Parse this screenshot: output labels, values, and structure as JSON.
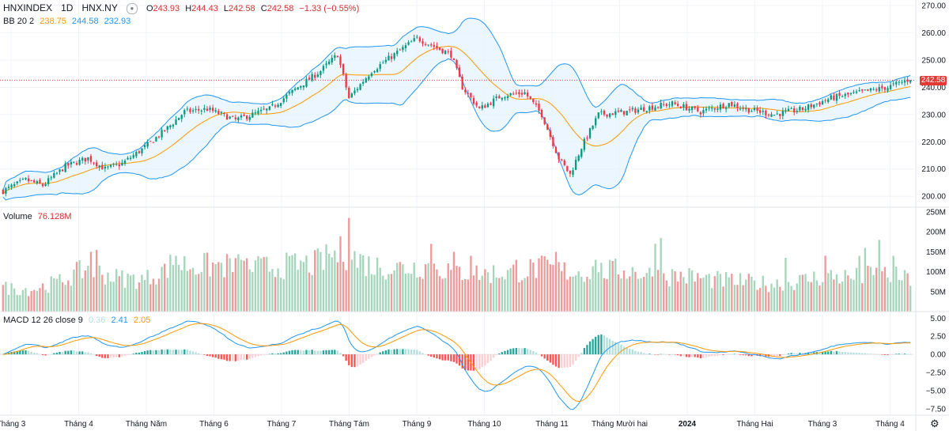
{
  "header": {
    "symbol": "HNXINDEX",
    "interval": "1D",
    "exchange": "HNX.NY",
    "open_label": "O",
    "open": "243.93",
    "high_label": "H",
    "high": "244.43",
    "low_label": "L",
    "low": "242.58",
    "close_label": "C",
    "close": "242.58",
    "change": "−1.33 (−0.55%)"
  },
  "bb_legend": {
    "name": "BB 20 2",
    "basis": "238.75",
    "upper": "244.58",
    "lower": "232.93"
  },
  "volume_legend": {
    "name": "Volume",
    "value": "76.128M"
  },
  "macd_legend": {
    "name": "MACD 12 26 close 9",
    "hist": "0.36",
    "macd": "2.41",
    "signal": "2.05"
  },
  "last_price_tag": "242.58",
  "colors": {
    "up": "#089981",
    "down": "#f23645",
    "vol_up": "#a5d6bb",
    "vol_down": "#ef9a9a",
    "bb_band": "#2196f3",
    "bb_fill": "#e3f2fd",
    "bb_basis": "#ff9800",
    "macd_line": "#2196f3",
    "signal_line": "#ff9800",
    "hist_up_strong": "#26a69a",
    "hist_up_weak": "#b2dfdb",
    "hist_dn_strong": "#ff5252",
    "hist_dn_weak": "#ffcdd2"
  },
  "chart_data": {
    "type": "candlestick",
    "x_axis_labels": [
      "Tháng 3",
      "Tháng 4",
      "Tháng Năm",
      "Tháng 6",
      "Tháng 7",
      "Tháng Tám",
      "Tháng 9",
      "Tháng 10",
      "Tháng 11",
      "Tháng Mười hai",
      "2024",
      "Tháng Hai",
      "Tháng 3",
      "Tháng 4"
    ],
    "price_axis": {
      "ticks": [
        "270.00",
        "260.00",
        "250.00",
        "240.00",
        "230.00",
        "220.00",
        "210.00",
        "200.00"
      ],
      "range": [
        196,
        272
      ]
    },
    "volume_axis": {
      "ticks": [
        "250M",
        "200M",
        "150M",
        "100M",
        "50M"
      ],
      "range": [
        0,
        260
      ]
    },
    "macd_axis": {
      "ticks": [
        "5.00",
        "2.50",
        "0.00",
        "−2.50",
        "−5.00",
        "−7.50"
      ],
      "range": [
        -8.4,
        5.8
      ]
    },
    "price_anchors": [
      [
        0,
        202
      ],
      [
        8,
        206
      ],
      [
        14,
        204
      ],
      [
        22,
        211
      ],
      [
        30,
        214
      ],
      [
        36,
        210
      ],
      [
        42,
        212
      ],
      [
        50,
        218
      ],
      [
        58,
        225
      ],
      [
        64,
        231
      ],
      [
        72,
        232
      ],
      [
        82,
        228
      ],
      [
        94,
        232
      ],
      [
        104,
        240
      ],
      [
        112,
        246
      ],
      [
        118,
        252
      ],
      [
        122,
        236
      ],
      [
        130,
        246
      ],
      [
        138,
        252
      ],
      [
        146,
        258
      ],
      [
        150,
        256
      ],
      [
        158,
        252
      ],
      [
        162,
        240
      ],
      [
        168,
        232
      ],
      [
        176,
        237
      ],
      [
        184,
        238
      ],
      [
        190,
        230
      ],
      [
        196,
        214
      ],
      [
        200,
        208
      ],
      [
        204,
        218
      ],
      [
        210,
        230
      ],
      [
        220,
        231
      ],
      [
        230,
        233
      ],
      [
        236,
        234
      ],
      [
        246,
        231
      ],
      [
        256,
        234
      ],
      [
        262,
        232
      ],
      [
        272,
        230
      ],
      [
        282,
        232
      ],
      [
        292,
        236
      ],
      [
        302,
        238
      ],
      [
        312,
        240
      ],
      [
        320,
        243
      ]
    ],
    "volume_anchors": [
      [
        0,
        60
      ],
      [
        10,
        55
      ],
      [
        20,
        75
      ],
      [
        30,
        110
      ],
      [
        40,
        85
      ],
      [
        50,
        80
      ],
      [
        60,
        120
      ],
      [
        70,
        115
      ],
      [
        80,
        115
      ],
      [
        90,
        110
      ],
      [
        100,
        115
      ],
      [
        110,
        120
      ],
      [
        120,
        150
      ],
      [
        130,
        115
      ],
      [
        140,
        110
      ],
      [
        150,
        115
      ],
      [
        160,
        100
      ],
      [
        170,
        95
      ],
      [
        180,
        100
      ],
      [
        190,
        110
      ],
      [
        200,
        100
      ],
      [
        210,
        100
      ],
      [
        220,
        105
      ],
      [
        230,
        90
      ],
      [
        240,
        90
      ],
      [
        250,
        80
      ],
      [
        260,
        75
      ],
      [
        270,
        70
      ],
      [
        280,
        75
      ],
      [
        290,
        90
      ],
      [
        300,
        85
      ],
      [
        310,
        95
      ],
      [
        320,
        80
      ]
    ],
    "volume_spikes": {
      "31": 150,
      "33": 155,
      "57": 120,
      "61": 140,
      "84": 130,
      "115": 145,
      "122": 235,
      "125": 110,
      "151": 170,
      "159": 150,
      "165": 140,
      "181": 130,
      "195": 150,
      "209": 130,
      "230": 170,
      "232": 185,
      "276": 135,
      "290": 140,
      "302": 140,
      "304": 160,
      "309": 180,
      "314": 140
    },
    "n_bars": 321,
    "last_close": 242.58
  }
}
